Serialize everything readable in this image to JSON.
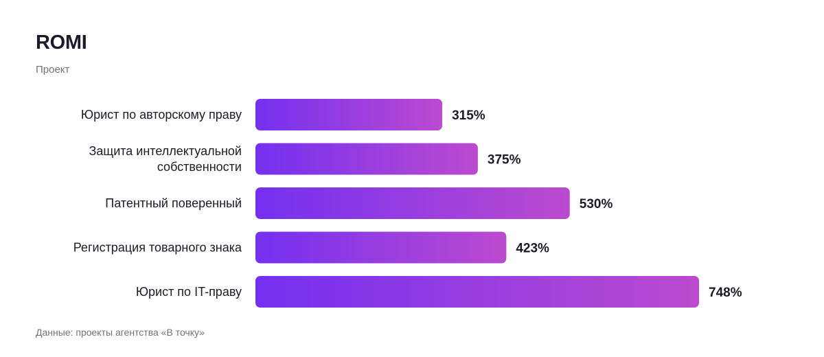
{
  "title": "ROMI",
  "subtitle": "Проект",
  "source": "Данные: проекты агентства «В точку»",
  "colors": {
    "bar_start": "#7430f0",
    "bar_end": "#bb4bcf",
    "text": "#1b1a2b",
    "muted": "#707080"
  },
  "chart_data": {
    "type": "bar",
    "orientation": "horizontal",
    "title": "ROMI",
    "subtitle": "Проект",
    "categories": [
      [
        "Юрист по авторскому праву"
      ],
      [
        "Защита интеллектуальной",
        "собственности"
      ],
      [
        "Патентный поверенный"
      ],
      [
        "Регистрация товарного знака"
      ],
      [
        "Юрист по IT-праву"
      ]
    ],
    "values": [
      315,
      375,
      530,
      423,
      748
    ],
    "value_labels": [
      "315%",
      "375%",
      "530%",
      "423%",
      "748%"
    ],
    "unit": "%",
    "grid": false,
    "legend": "none"
  }
}
